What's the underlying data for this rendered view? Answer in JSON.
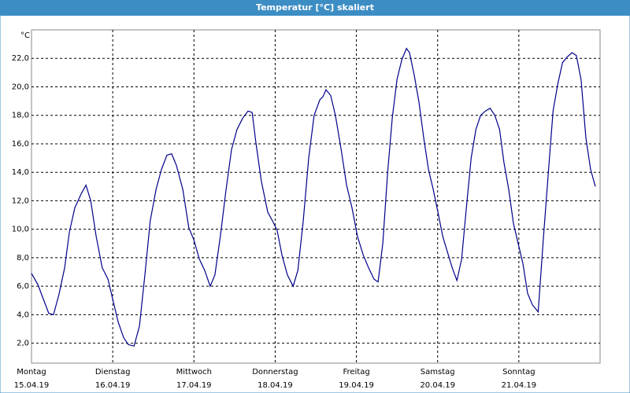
{
  "chart_data": {
    "type": "line",
    "title": "Temperatur [°C] skaliert",
    "unit_label": "°C",
    "x": [
      0,
      1.9,
      3.5,
      5.1,
      6.5,
      8.1,
      9.8,
      11.2,
      12.8,
      14.7,
      16.1,
      17.5,
      19.1,
      20.9,
      22.6,
      24.0,
      25.6,
      27.2,
      28.6,
      30.3,
      31.9,
      33.5,
      35.1,
      36.8,
      38.4,
      40.0,
      41.4,
      42.8,
      44.7,
      46.5,
      47.9,
      49.6,
      51.2,
      52.8,
      54.2,
      55.8,
      57.5,
      59.1,
      60.7,
      62.4,
      64.0,
      65.2,
      66.3,
      67.9,
      69.8,
      71.4,
      72.6,
      74.0,
      75.6,
      77.3,
      78.7,
      80.3,
      81.9,
      83.5,
      85.2,
      86.1,
      87.0,
      88.4,
      89.8,
      91.5,
      93.1,
      94.7,
      96.3,
      98.0,
      99.6,
      101.2,
      102.4,
      103.8,
      105.2,
      106.6,
      108.0,
      109.4,
      110.8,
      111.7,
      113.1,
      114.5,
      115.9,
      117.3,
      118.7,
      120.1,
      121.5,
      122.9,
      124.3,
      125.7,
      127.1,
      128.5,
      129.9,
      131.3,
      132.7,
      134.1,
      135.5,
      136.9,
      138.3,
      139.6,
      141.0,
      142.4,
      143.8,
      145.2,
      146.6,
      148.0,
      149.7,
      151.3,
      152.7,
      154.1,
      155.5,
      156.9,
      158.3,
      159.7,
      161.0,
      162.4,
      163.8,
      165.2,
      166.6
    ],
    "values": [
      6.9,
      6.1,
      5.1,
      4.1,
      4.0,
      5.4,
      7.3,
      9.8,
      11.5,
      12.5,
      13.1,
      12.0,
      9.5,
      7.3,
      6.5,
      5.1,
      3.5,
      2.4,
      1.9,
      1.8,
      3.2,
      6.8,
      10.6,
      12.8,
      14.2,
      15.2,
      15.3,
      14.5,
      12.8,
      10.1,
      9.3,
      7.9,
      7.1,
      6.0,
      6.8,
      9.5,
      12.8,
      15.6,
      17.0,
      17.8,
      18.3,
      18.2,
      16.1,
      13.4,
      11.2,
      10.5,
      9.9,
      8.2,
      6.8,
      6.0,
      7.1,
      10.6,
      15.0,
      18.0,
      19.1,
      19.3,
      19.8,
      19.4,
      18.0,
      15.6,
      13.1,
      11.5,
      9.5,
      8.2,
      7.3,
      6.5,
      6.3,
      9.0,
      13.9,
      17.8,
      20.5,
      21.9,
      22.7,
      22.4,
      20.8,
      18.9,
      16.4,
      14.2,
      12.8,
      11.2,
      9.5,
      8.4,
      7.3,
      6.4,
      7.9,
      11.5,
      15.0,
      17.0,
      18.0,
      18.3,
      18.5,
      18.0,
      17.0,
      14.7,
      12.8,
      10.4,
      9.0,
      7.6,
      5.5,
      4.7,
      4.2,
      9.5,
      13.9,
      18.3,
      20.2,
      21.7,
      22.1,
      22.4,
      22.2,
      20.5,
      16.4,
      14.2,
      13.0
    ],
    "color": "#00008b",
    "xlim": [
      0,
      168
    ],
    "xticks": [
      {
        "value": 0,
        "label": "Montag"
      },
      {
        "value": 24,
        "label": "Dienstag"
      },
      {
        "value": 48,
        "label": "Mittwoch"
      },
      {
        "value": 72,
        "label": "Donnerstag"
      },
      {
        "value": 96,
        "label": "Freitag"
      },
      {
        "value": 120,
        "label": "Samstag"
      },
      {
        "value": 144,
        "label": "Sonntag"
      }
    ],
    "xtick_dates": [
      "15.04.19",
      "16.04.19",
      "17.04.19",
      "18.04.19",
      "19.04.19",
      "20.04.19",
      "21.04.19"
    ],
    "ylim": [
      0.6,
      24
    ],
    "yticks": [
      {
        "value": 2,
        "label": "2,0"
      },
      {
        "value": 4,
        "label": "4,0"
      },
      {
        "value": 6,
        "label": "6,0"
      },
      {
        "value": 8,
        "label": "8,0"
      },
      {
        "value": 10,
        "label": "10,0"
      },
      {
        "value": 12,
        "label": "12,0"
      },
      {
        "value": 14,
        "label": "14,0"
      },
      {
        "value": 16,
        "label": "16,0"
      },
      {
        "value": 18,
        "label": "18,0"
      },
      {
        "value": 20,
        "label": "20,0"
      },
      {
        "value": 22,
        "label": "22,0"
      }
    ],
    "grid": true
  }
}
